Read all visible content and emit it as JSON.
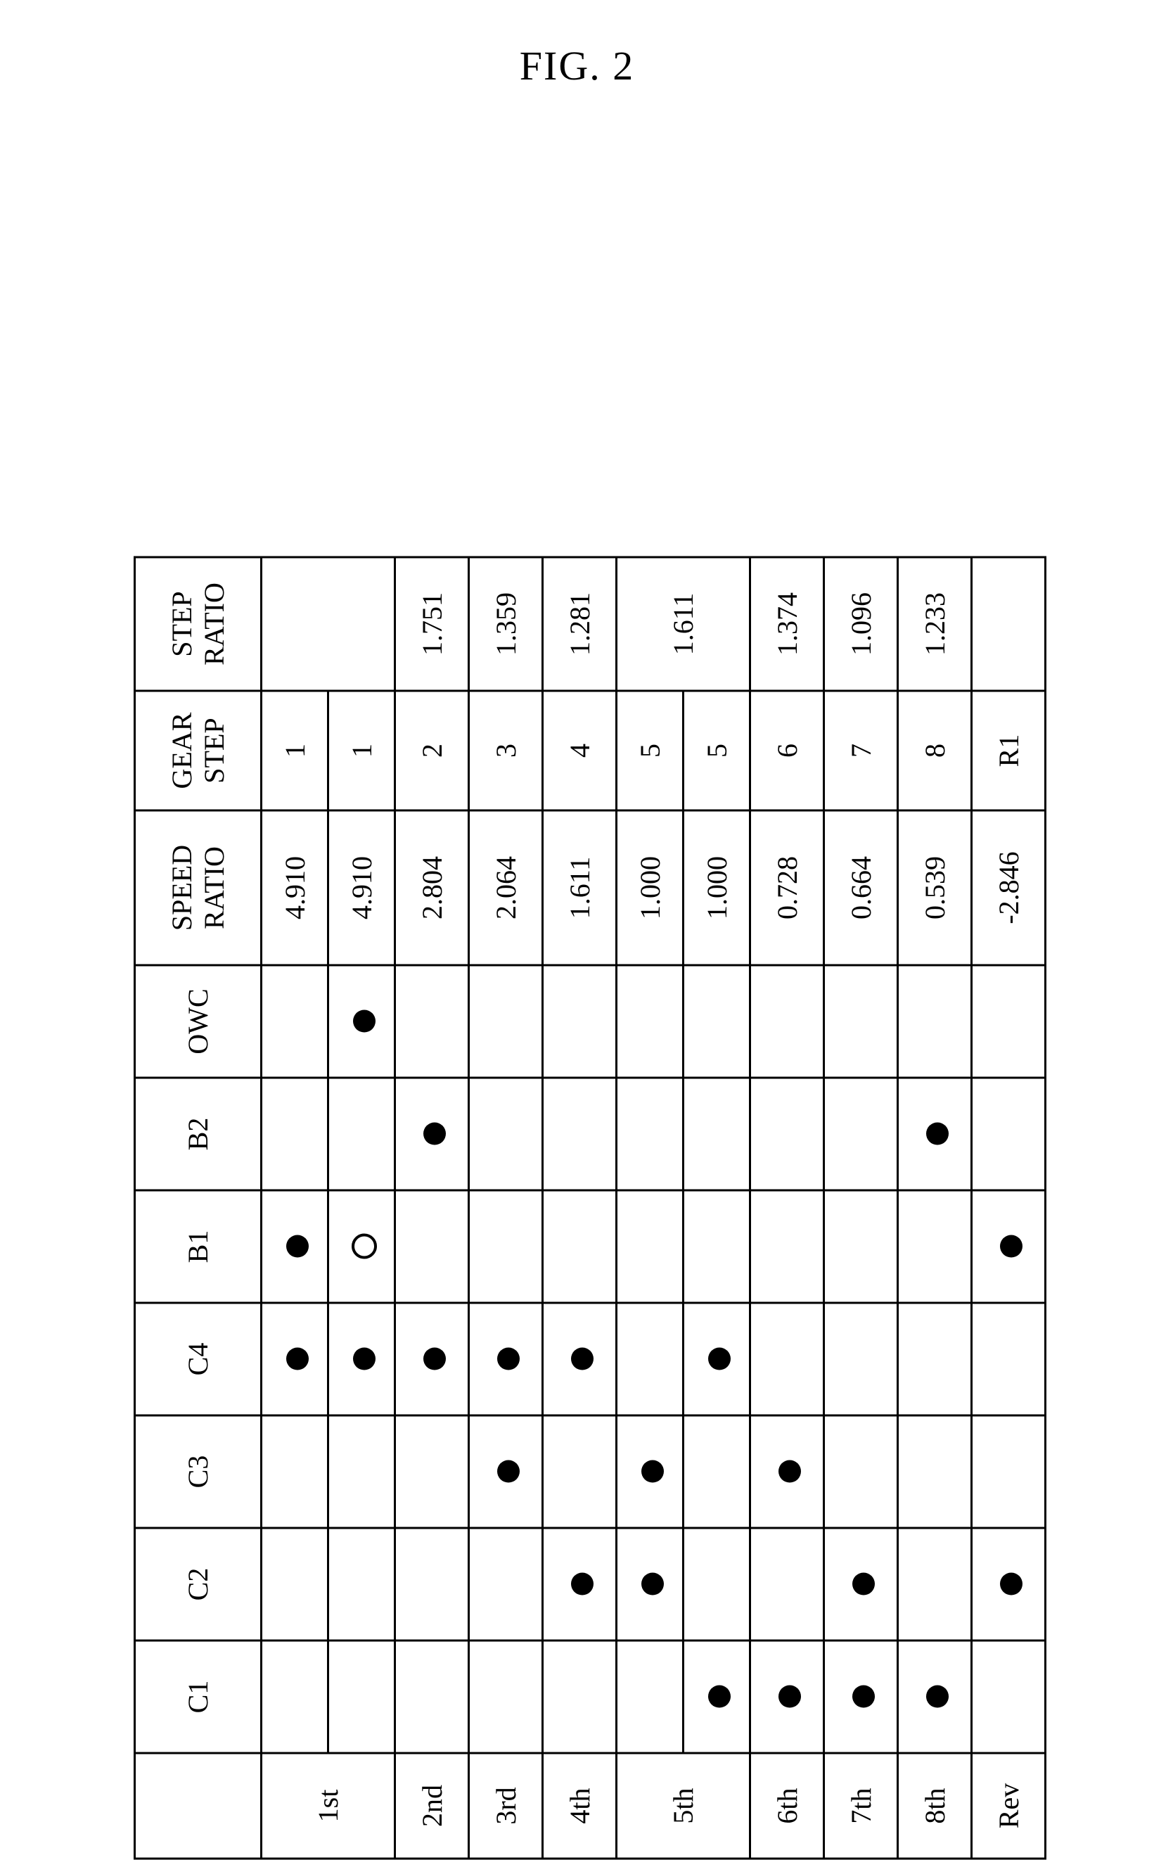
{
  "figure_label": "FIG. 2",
  "headers": {
    "gear_col": "",
    "elements": [
      "C1",
      "C2",
      "C3",
      "C4",
      "B1",
      "B2",
      "OWC"
    ],
    "speed_ratio": "SPEED RATIO",
    "gear_step": "GEAR STEP",
    "step_ratio": "STEP RATIO"
  },
  "marks": {
    "filled": "filled",
    "open": "open",
    "blank": ""
  },
  "colors": {
    "line": "#000000",
    "bg": "#ffffff",
    "dot": "#000000"
  },
  "rows": [
    {
      "gear_label": "1st",
      "gear_rowspan": 2,
      "sub": [
        {
          "cells": [
            "",
            "",
            "",
            "filled",
            "filled",
            "",
            ""
          ],
          "speed": "4.910",
          "gear_step": "1",
          "step": "",
          "step_rowspan": 2
        },
        {
          "cells": [
            "",
            "",
            "",
            "filled",
            "open",
            "",
            "filled"
          ],
          "speed": "4.910",
          "gear_step": "1"
        }
      ]
    },
    {
      "gear_label": "2nd",
      "sub": [
        {
          "cells": [
            "",
            "",
            "",
            "filled",
            "",
            "filled",
            ""
          ],
          "speed": "2.804",
          "gear_step": "2",
          "step": "1.751"
        }
      ]
    },
    {
      "gear_label": "3rd",
      "sub": [
        {
          "cells": [
            "",
            "",
            "filled",
            "filled",
            "",
            "",
            ""
          ],
          "speed": "2.064",
          "gear_step": "3",
          "step": "1.359"
        }
      ]
    },
    {
      "gear_label": "4th",
      "sub": [
        {
          "cells": [
            "",
            "filled",
            "",
            "filled",
            "",
            "",
            ""
          ],
          "speed": "1.611",
          "gear_step": "4",
          "step": "1.281"
        }
      ]
    },
    {
      "gear_label": "5th",
      "gear_rowspan": 2,
      "sub": [
        {
          "cells": [
            "",
            "filled",
            "filled",
            "",
            "",
            "",
            ""
          ],
          "speed": "1.000",
          "gear_step": "5",
          "step": "1.611",
          "step_rowspan": 2
        },
        {
          "cells": [
            "filled",
            "",
            "",
            "filled",
            "",
            "",
            ""
          ],
          "speed": "1.000",
          "gear_step": "5"
        }
      ]
    },
    {
      "gear_label": "6th",
      "sub": [
        {
          "cells": [
            "filled",
            "",
            "filled",
            "",
            "",
            "",
            ""
          ],
          "speed": "0.728",
          "gear_step": "6",
          "step": "1.374"
        }
      ]
    },
    {
      "gear_label": "7th",
      "sub": [
        {
          "cells": [
            "filled",
            "filled",
            "",
            "",
            "",
            "",
            ""
          ],
          "speed": "0.664",
          "gear_step": "7",
          "step": "1.096"
        }
      ]
    },
    {
      "gear_label": "8th",
      "sub": [
        {
          "cells": [
            "filled",
            "",
            "",
            "",
            "",
            "filled",
            ""
          ],
          "speed": "0.539",
          "gear_step": "8",
          "step": "1.233"
        }
      ]
    },
    {
      "gear_label": "Rev",
      "sub": [
        {
          "cells": [
            "",
            "filled",
            "",
            "",
            "filled",
            "",
            ""
          ],
          "speed": "-2.846",
          "gear_step": "R1",
          "step": ""
        }
      ]
    }
  ]
}
